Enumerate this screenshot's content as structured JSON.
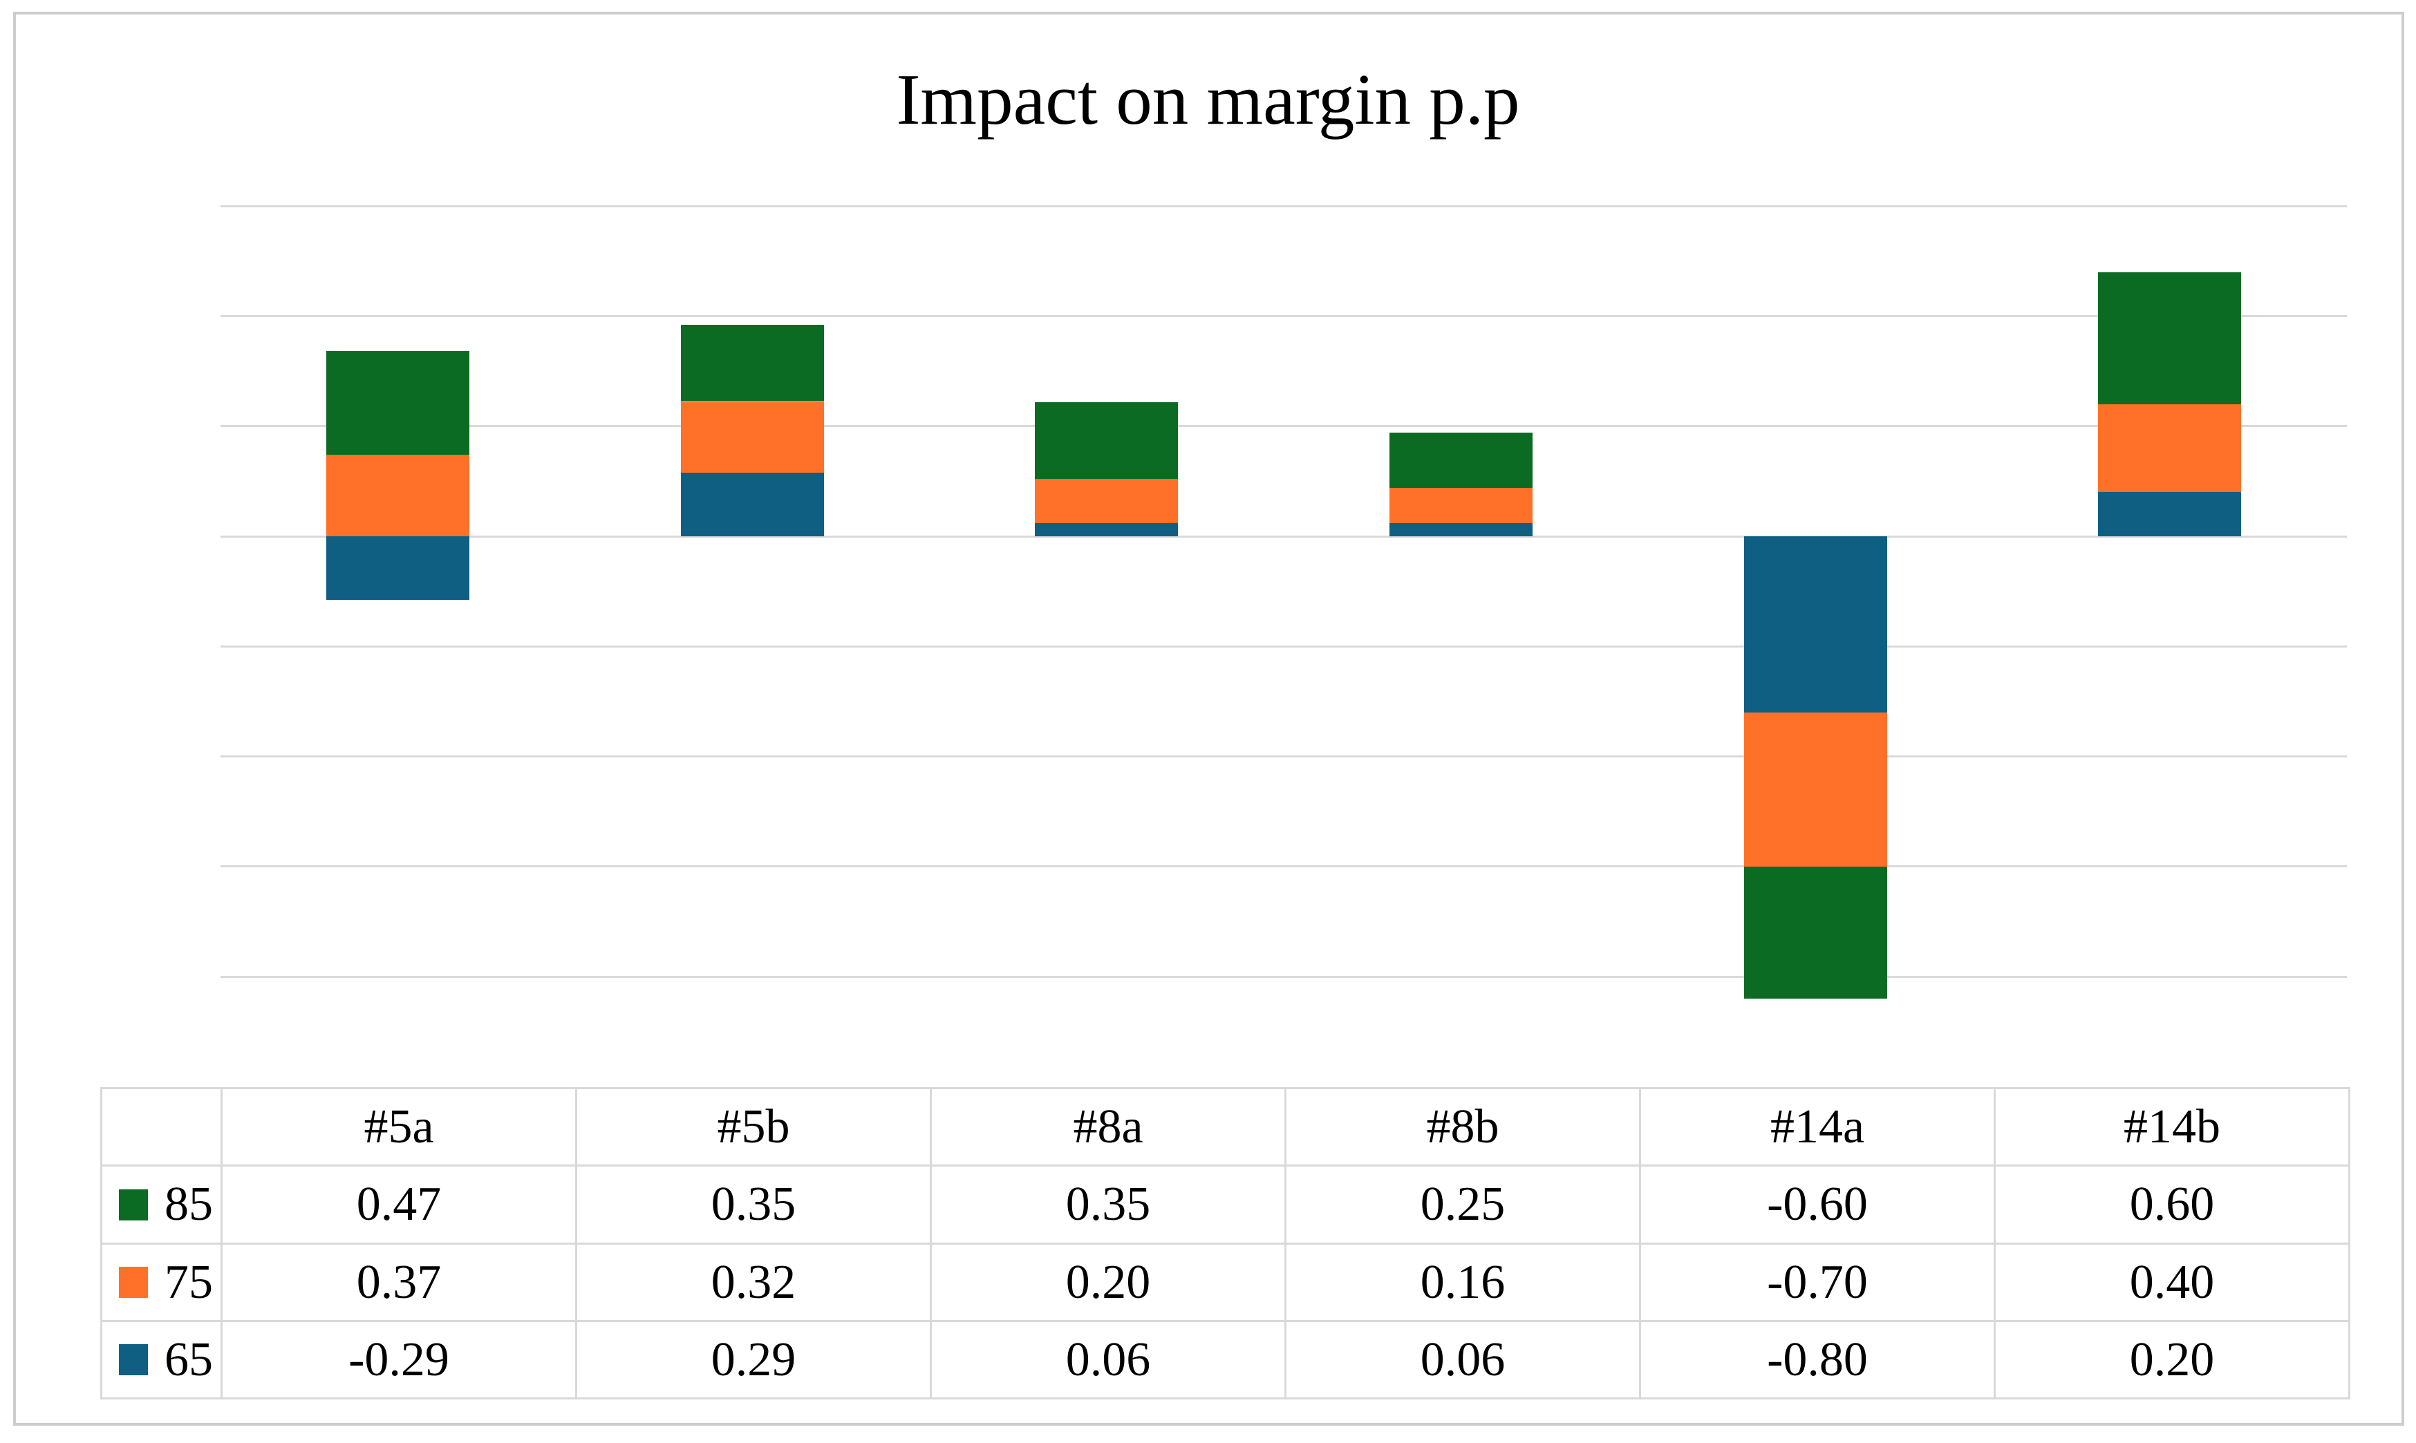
{
  "chart_data": {
    "type": "bar",
    "stacked": true,
    "title": "Impact on margin p.p",
    "categories": [
      "#5a",
      "#5b",
      "#8a",
      "#8b",
      "#14a",
      "#14b"
    ],
    "series": [
      {
        "name": "85",
        "color": "#0C6B23",
        "values": [
          0.47,
          0.35,
          0.35,
          0.25,
          -0.6,
          0.6
        ],
        "labels": [
          "0.47",
          "0.35",
          "0.35",
          "0.25",
          "-0.60",
          "0.60"
        ]
      },
      {
        "name": "75",
        "color": "#FF7128",
        "values": [
          0.37,
          0.32,
          0.2,
          0.16,
          -0.7,
          0.4
        ],
        "labels": [
          "0.37",
          "0.32",
          "0.20",
          "0.16",
          "-0.70",
          "0.40"
        ]
      },
      {
        "name": "65",
        "color": "#0E5F82",
        "values": [
          -0.29,
          0.29,
          0.06,
          0.06,
          -0.8,
          0.2
        ],
        "labels": [
          "-0.29",
          "0.29",
          "0.06",
          "0.06",
          "-0.80",
          "0.20"
        ]
      }
    ],
    "stack_order": [
      "65",
      "75",
      "85"
    ],
    "xlabel": "",
    "ylabel": "",
    "ylim": [
      -2.25,
      1.5
    ],
    "gridlines": [
      1.5,
      1.0,
      0.5,
      0.0,
      -0.5,
      -1.0,
      -1.5,
      -2.0
    ],
    "gridline_step": 0.5,
    "grid": true,
    "y_axis_labels_visible": false,
    "x_axis_labels_visible": false,
    "legend_position": "table-rows-left",
    "value_format": "0.00",
    "table_corner_label": "",
    "colors": {
      "gridline": "#D9D9D9",
      "table_border": "#D9D9D9",
      "figure_border": "#CDCDCD",
      "background": "#FFFFFF",
      "text": "#000000"
    }
  }
}
